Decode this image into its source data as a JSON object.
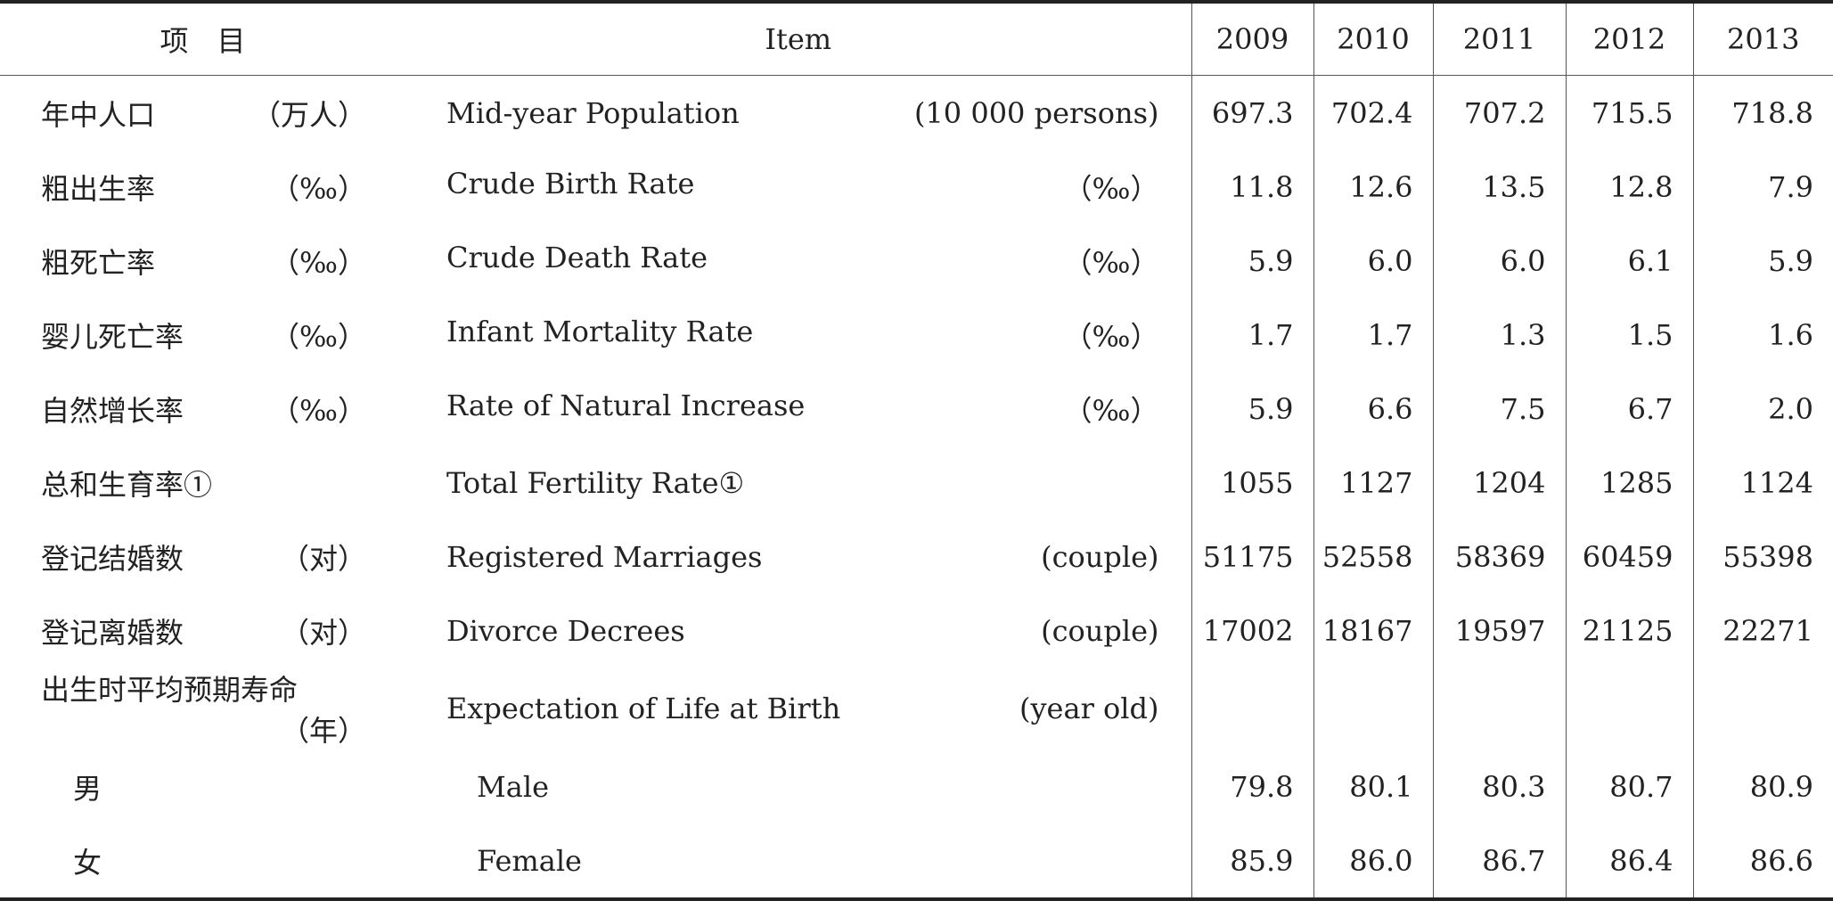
{
  "header": {
    "item_cn": "项　目",
    "item_en": "Item",
    "years": [
      "2009",
      "2010",
      "2011",
      "2012",
      "2013"
    ]
  },
  "rows": [
    {
      "cn": "年中人口",
      "cn_unit": "（万人）",
      "en": "Mid-year Population",
      "en_unit": "(10 000 persons)",
      "values": [
        "697.3",
        "702.4",
        "707.2",
        "715.5",
        "718.8"
      ]
    },
    {
      "cn": "粗出生率",
      "cn_unit": "（‰）",
      "en": "Crude Birth Rate",
      "en_unit": "（‰）",
      "values": [
        "11.8",
        "12.6",
        "13.5",
        "12.8",
        "7.9"
      ]
    },
    {
      "cn": "粗死亡率",
      "cn_unit": "（‰）",
      "en": "Crude Death Rate",
      "en_unit": "（‰）",
      "values": [
        "5.9",
        "6.0",
        "6.0",
        "6.1",
        "5.9"
      ]
    },
    {
      "cn": "婴儿死亡率",
      "cn_unit": "（‰）",
      "en": "Infant Mortality Rate",
      "en_unit": "（‰）",
      "values": [
        "1.7",
        "1.7",
        "1.3",
        "1.5",
        "1.6"
      ]
    },
    {
      "cn": "自然增长率",
      "cn_unit": "（‰）",
      "en": "Rate of Natural Increase",
      "en_unit": "（‰）",
      "values": [
        "5.9",
        "6.6",
        "7.5",
        "6.7",
        "2.0"
      ]
    },
    {
      "cn": "总和生育率①",
      "cn_unit": "",
      "en": "Total Fertility Rate①",
      "en_unit": "",
      "values": [
        "1055",
        "1127",
        "1204",
        "1285",
        "1124"
      ]
    },
    {
      "cn": "登记结婚数",
      "cn_unit": "（对）",
      "en": "Registered Marriages",
      "en_unit": "(couple)",
      "values": [
        "51175",
        "52558",
        "58369",
        "60459",
        "55398"
      ]
    },
    {
      "cn": "登记离婚数",
      "cn_unit": "（对）",
      "en": "Divorce Decrees",
      "en_unit": "(couple)",
      "values": [
        "17002",
        "18167",
        "19597",
        "21125",
        "22271"
      ]
    },
    {
      "cn": "出生时平均预期寿命",
      "cn_unit": "（年）",
      "en": "Expectation of Life at Birth",
      "en_unit": "(year old)",
      "values": [
        "",
        "",
        "",
        "",
        ""
      ]
    },
    {
      "cn": "男",
      "cn_unit": "",
      "en": "Male",
      "en_unit": "",
      "values": [
        "79.8",
        "80.1",
        "80.3",
        "80.7",
        "80.9"
      ]
    },
    {
      "cn": "女",
      "cn_unit": "",
      "en": "Female",
      "en_unit": "",
      "values": [
        "85.9",
        "86.0",
        "86.7",
        "86.4",
        "86.6"
      ]
    }
  ]
}
